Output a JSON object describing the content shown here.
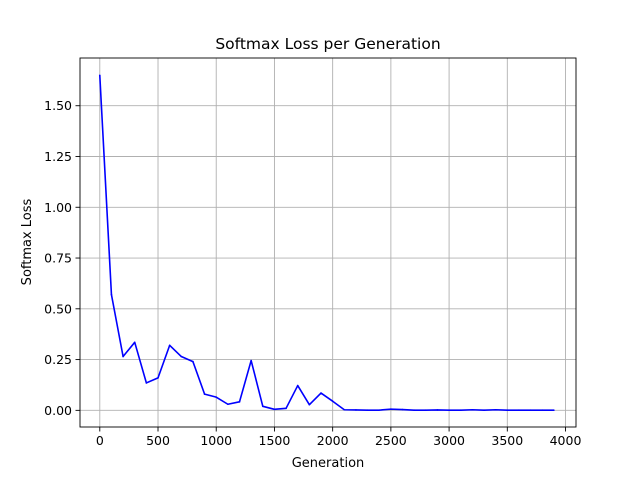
{
  "chart_data": {
    "type": "line",
    "title": "Softmax Loss per Generation",
    "xlabel": "Generation",
    "ylabel": "Softmax Loss",
    "xlim": [
      -170,
      4090
    ],
    "ylim": [
      -0.082,
      1.735
    ],
    "xticks": [
      0,
      500,
      1000,
      1500,
      2000,
      2500,
      3000,
      3500,
      4000
    ],
    "xtick_labels": [
      "0",
      "500",
      "1000",
      "1500",
      "2000",
      "2500",
      "3000",
      "3500",
      "4000"
    ],
    "yticks": [
      0.0,
      0.25,
      0.5,
      0.75,
      1.0,
      1.25,
      1.5
    ],
    "ytick_labels": [
      "0.00",
      "0.25",
      "0.50",
      "0.75",
      "1.00",
      "1.25",
      "1.50"
    ],
    "grid": true,
    "series": [
      {
        "color": "#0000ff",
        "x": [
          0,
          100,
          200,
          300,
          400,
          500,
          600,
          700,
          800,
          900,
          1000,
          1100,
          1200,
          1300,
          1400,
          1500,
          1600,
          1700,
          1800,
          1900,
          2000,
          2100,
          2200,
          2300,
          2400,
          2500,
          2600,
          2700,
          2800,
          2900,
          3000,
          3100,
          3200,
          3300,
          3400,
          3500,
          3600,
          3700,
          3800,
          3900
        ],
        "values": [
          1.65,
          0.57,
          0.265,
          0.335,
          0.135,
          0.16,
          0.32,
          0.265,
          0.24,
          0.08,
          0.065,
          0.03,
          0.042,
          0.245,
          0.02,
          0.005,
          0.01,
          0.122,
          0.028,
          0.085,
          0.045,
          0.003,
          0.002,
          0.001,
          0.001,
          0.006,
          0.004,
          0.001,
          0.001,
          0.002,
          0.001,
          0.001,
          0.003,
          0.001,
          0.003,
          0.001,
          0.001,
          0.001,
          0.001,
          0.001
        ]
      }
    ]
  }
}
